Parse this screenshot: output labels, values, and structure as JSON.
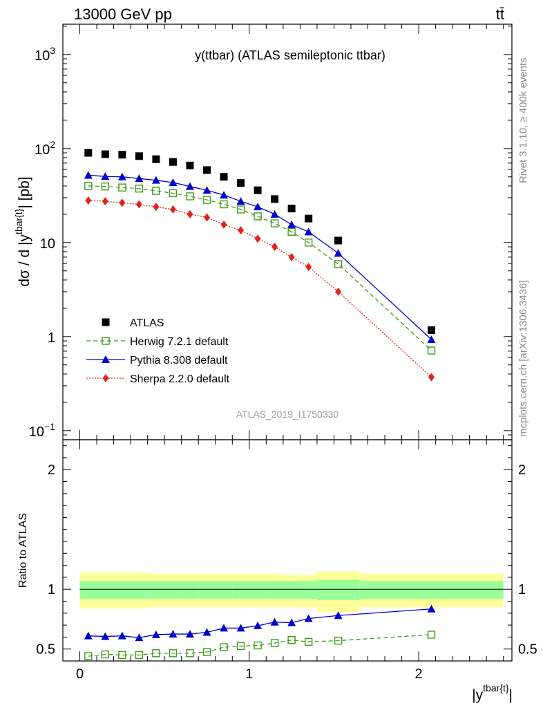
{
  "header": {
    "energy_label": "13000 GeV pp",
    "process_label": "tt̄"
  },
  "side_text": {
    "rivet_label": "Rivet 3.1.10, ≥ 400k events",
    "mcplots_label": "mcplots.cern.ch [arXiv:1306.3436]"
  },
  "chart_data": [
    {
      "type": "scatter",
      "panel": "main",
      "title": "y(ttbar) (ATLAS semileptonic ttbar)",
      "watermark": "ATLAS_2019_I1750330",
      "ylabel": "dσ / d |y^{tbar{t}}| [pb]",
      "ylabel_parts": {
        "prefix": "dσ / d |y",
        "sup": "tbar{t}",
        "suffix": "| [pb]"
      },
      "yscale": "log",
      "ylim": [
        0.08,
        2100
      ],
      "xlim": [
        -0.1,
        2.55
      ],
      "yticks": [
        {
          "value": 0.1,
          "base": "10",
          "exp": "−1"
        },
        {
          "value": 1,
          "base": "1",
          "exp": ""
        },
        {
          "value": 10,
          "base": "10",
          "exp": ""
        },
        {
          "value": 100,
          "base": "10",
          "exp": "2"
        },
        {
          "value": 1000,
          "base": "10",
          "exp": "3"
        }
      ],
      "legend_position": "bottom-left",
      "x": [
        0.05,
        0.15,
        0.25,
        0.35,
        0.45,
        0.55,
        0.65,
        0.75,
        0.85,
        0.95,
        1.05,
        1.15,
        1.25,
        1.35,
        1.525,
        2.075
      ],
      "series": [
        {
          "name": "ATLAS",
          "color": "#000000",
          "marker": "square-filled",
          "line": "none",
          "values": [
            90,
            87,
            86,
            83,
            77,
            72,
            66,
            59,
            50,
            43,
            36,
            29,
            23,
            18,
            10.5,
            1.17
          ]
        },
        {
          "name": "Herwig 7.2.1 default",
          "color": "#3f9b19",
          "marker": "square-open",
          "line": "dashed",
          "values": [
            40,
            39.5,
            38.5,
            37.5,
            35.5,
            33.5,
            31,
            28.5,
            25.5,
            22.5,
            19,
            16,
            13,
            10,
            5.9,
            0.71
          ]
        },
        {
          "name": "Pythia 8.308 default",
          "color": "#0000cc",
          "marker": "triangle-filled",
          "line": "solid",
          "values": [
            52,
            50.5,
            50,
            48,
            46,
            43.5,
            39.5,
            36,
            32,
            27.5,
            24,
            20,
            15.5,
            13,
            7.7,
            0.93
          ]
        },
        {
          "name": "Sherpa 2.2.0 default",
          "color": "#e0241b",
          "marker": "diamond-filled",
          "line": "dotted",
          "values": [
            28,
            27.5,
            26.5,
            25.5,
            24,
            22.5,
            20,
            18.5,
            15.5,
            13.5,
            11,
            9,
            7,
            5.5,
            3.0,
            0.37
          ]
        }
      ]
    },
    {
      "type": "line",
      "panel": "ratio",
      "ylabel": "Ratio to ATLAS",
      "xlabel": "|y^{tbar{t}}|",
      "xlabel_parts": {
        "prefix": "|y",
        "sup": "tbar{t}",
        "suffix": "|"
      },
      "ylim": [
        0.4,
        2.25
      ],
      "xlim": [
        -0.1,
        2.55
      ],
      "yticks": [
        0.5,
        1,
        2
      ],
      "ytick_labels": [
        "0.5",
        "1",
        "2"
      ],
      "xticks": [
        0,
        1,
        2
      ],
      "xtick_labels": [
        "0",
        "1",
        "2"
      ],
      "reference_line": 1,
      "bands": {
        "edges": [
          0,
          0.1,
          0.2,
          0.3,
          0.4,
          0.5,
          0.6,
          0.7,
          0.8,
          0.9,
          1.0,
          1.1,
          1.2,
          1.3,
          1.4,
          1.65,
          2.5
        ],
        "outer": {
          "color": "#ffff99",
          "lo": [
            0.84,
            0.84,
            0.84,
            0.84,
            0.85,
            0.85,
            0.85,
            0.85,
            0.85,
            0.85,
            0.85,
            0.85,
            0.85,
            0.85,
            0.81,
            0.85
          ],
          "hi": [
            1.14,
            1.14,
            1.14,
            1.14,
            1.13,
            1.13,
            1.13,
            1.13,
            1.13,
            1.13,
            1.13,
            1.13,
            1.12,
            1.12,
            1.15,
            1.13
          ]
        },
        "inner": {
          "color": "#99ff99",
          "lo": [
            0.92,
            0.92,
            0.92,
            0.92,
            0.92,
            0.92,
            0.92,
            0.92,
            0.92,
            0.92,
            0.92,
            0.92,
            0.92,
            0.92,
            0.91,
            0.92
          ],
          "hi": [
            1.07,
            1.07,
            1.07,
            1.07,
            1.07,
            1.07,
            1.07,
            1.07,
            1.07,
            1.07,
            1.07,
            1.07,
            1.07,
            1.07,
            1.08,
            1.07
          ]
        }
      },
      "x": [
        0.05,
        0.15,
        0.25,
        0.35,
        0.45,
        0.55,
        0.65,
        0.75,
        0.85,
        0.95,
        1.05,
        1.15,
        1.25,
        1.35,
        1.525,
        2.075
      ],
      "series": [
        {
          "name": "Herwig 7.2.1 default",
          "color": "#3f9b19",
          "marker": "square-open",
          "line": "dashed",
          "values": [
            0.44,
            0.455,
            0.45,
            0.45,
            0.465,
            0.465,
            0.465,
            0.475,
            0.515,
            0.525,
            0.53,
            0.55,
            0.575,
            0.56,
            0.57,
            0.62
          ]
        },
        {
          "name": "Pythia 8.308 default",
          "color": "#0000cc",
          "marker": "triangle-filled",
          "line": "solid",
          "values": [
            0.61,
            0.605,
            0.61,
            0.595,
            0.62,
            0.625,
            0.625,
            0.64,
            0.675,
            0.675,
            0.695,
            0.725,
            0.72,
            0.755,
            0.78,
            0.835
          ]
        }
      ]
    }
  ]
}
